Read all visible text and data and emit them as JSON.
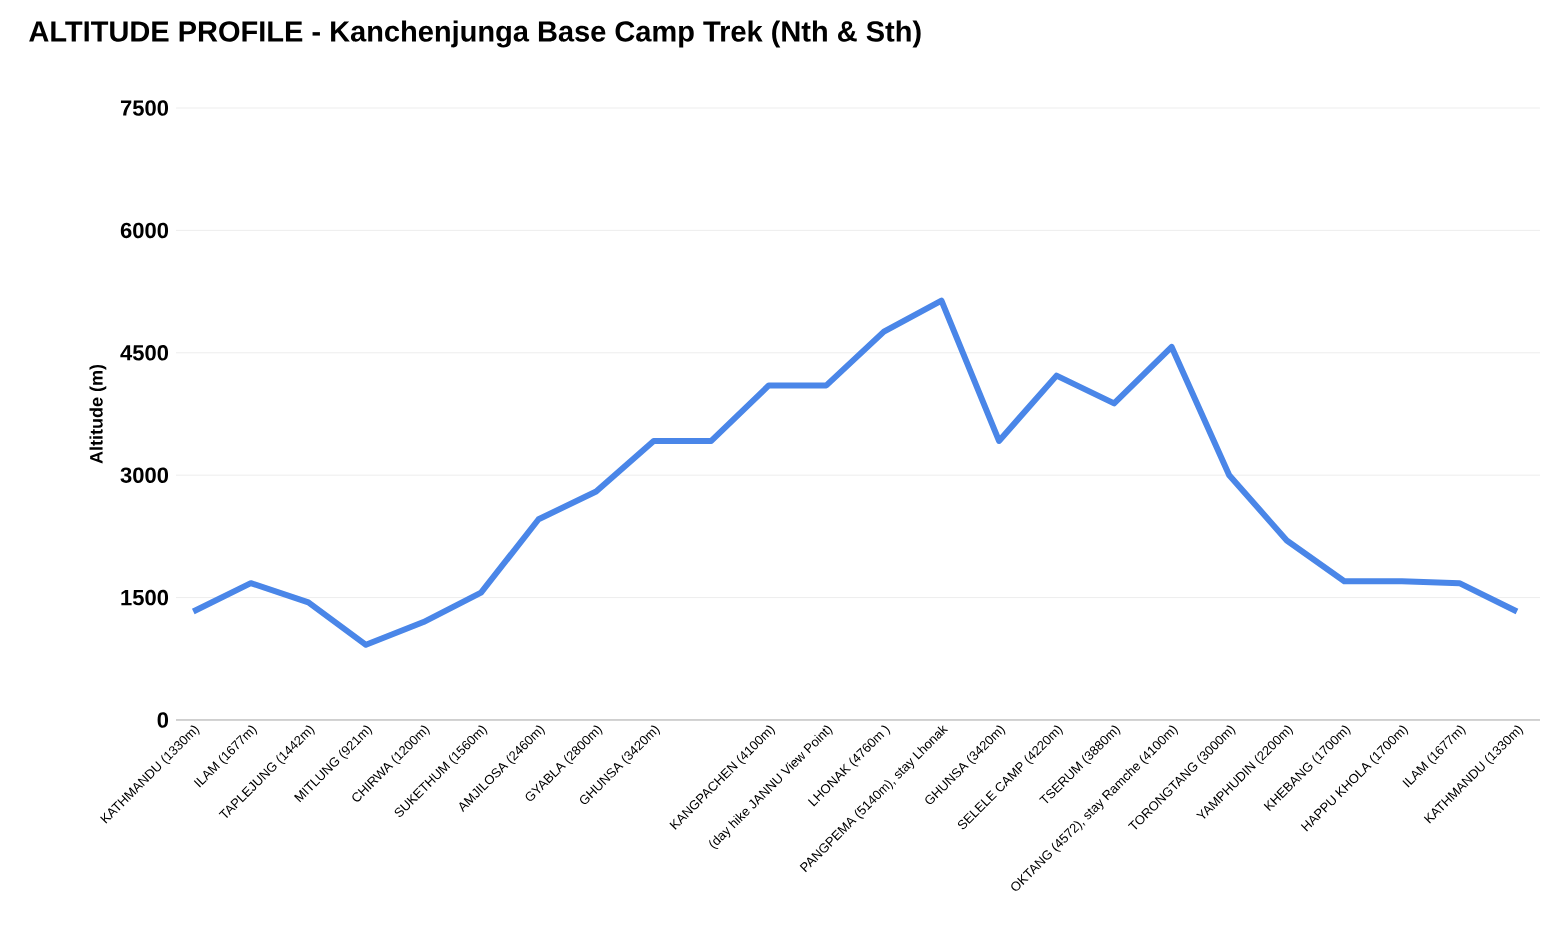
{
  "chart_data": {
    "type": "line",
    "title": "ALTITUDE PROFILE - Kanchenjunga Base Camp Trek (Nth & Sth)",
    "ylabel": "Altitude (m)",
    "categories": [
      "KATHMANDU (1330m)",
      "ILAM (1677m)",
      "TAPLEJUNG (1442m)",
      "MITLUNG (921m)",
      "CHIRWA (1200m)",
      "SUKETHUM (1560m)",
      "AMJILOSA (2460m)",
      "GYABLA (2800m)",
      "GHUNSA (3420m)",
      null,
      "KANGPACHEN (4100m)",
      "(day hike JANNU View Point)",
      "LHONAK (4760m )",
      "PANGPEMA (5140m), stay Lhonak",
      "GHUNSA (3420m)",
      "SELELE CAMP (4220m)",
      "TSERUM (3880m)",
      "OKTANG (4572), stay Ramche (4100m)",
      "TORONGTANG (3000m)",
      "YAMPHUDIN (2200m)",
      "KHEBANG (1700m)",
      "HAPPU KHOLA (1700m)",
      "ILAM (1677m)",
      "KATHMANDU (1330m)"
    ],
    "series": [
      {
        "color": "#4a86e8",
        "values": [
          1330,
          1677,
          1442,
          921,
          1200,
          1560,
          2460,
          2800,
          3420,
          3420,
          4100,
          4100,
          4760,
          5140,
          3420,
          4220,
          3880,
          4572,
          3000,
          2200,
          1700,
          1700,
          1677,
          1330
        ]
      }
    ],
    "ylim": [
      0,
      7500
    ],
    "yticks": [
      0,
      1500,
      3000,
      4500,
      6000,
      7500
    ],
    "grid": "y",
    "marker": "none",
    "line_style": "solid"
  }
}
